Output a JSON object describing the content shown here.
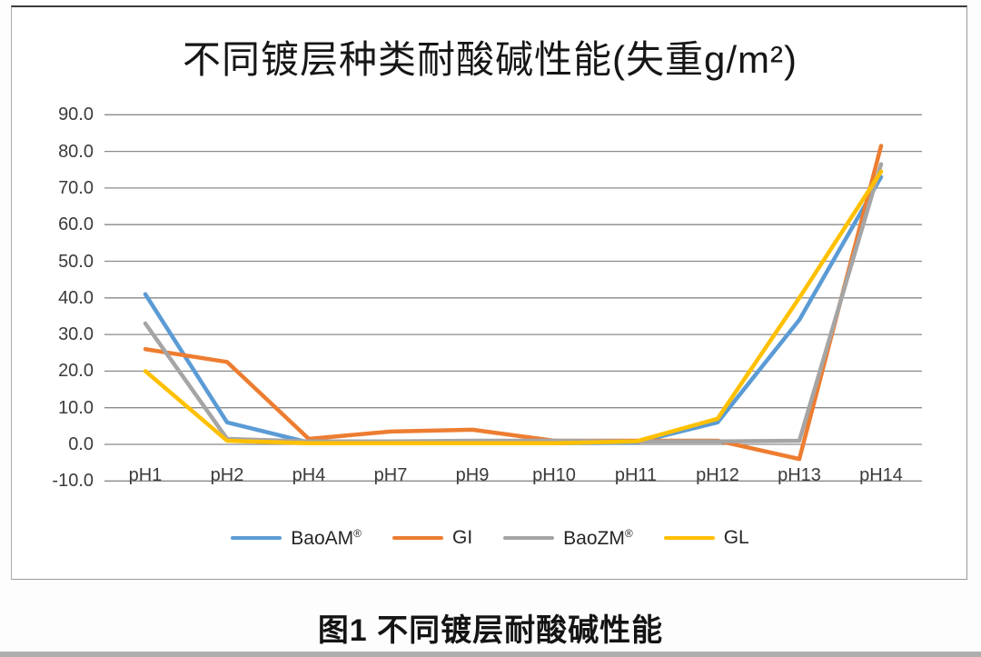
{
  "page": {
    "caption": "图1 不同镀层耐酸碱性能"
  },
  "chart_data": {
    "type": "line",
    "title": "不同镀层种类耐酸碱性能(失重g/m²)",
    "xlabel": "",
    "ylabel": "",
    "categories": [
      "pH1",
      "pH2",
      "pH4",
      "pH7",
      "pH9",
      "pH10",
      "pH11",
      "pH12",
      "pH13",
      "pH14"
    ],
    "series": [
      {
        "name": "BaoAM®",
        "color": "#5B9BD5",
        "values": [
          41,
          6,
          0.5,
          0.3,
          0.3,
          0.3,
          0.5,
          6,
          34,
          73
        ]
      },
      {
        "name": "GI",
        "color": "#ED7D31",
        "values": [
          26,
          22.5,
          1.5,
          3.5,
          4,
          1,
          1,
          1,
          -4,
          81.5
        ]
      },
      {
        "name": "BaoZM®",
        "color": "#A5A5A5",
        "values": [
          33,
          1.5,
          0.8,
          0.8,
          1,
          1,
          0.8,
          0.8,
          1,
          76.5
        ]
      },
      {
        "name": "GL",
        "color": "#FFC000",
        "values": [
          20,
          1,
          0.3,
          0.3,
          0.3,
          0.3,
          0.8,
          7,
          40,
          74.5
        ]
      }
    ],
    "ylim": [
      -10,
      90
    ],
    "ytick_step": 10,
    "ytick_labels": [
      "90.0",
      "80.0",
      "70.0",
      "60.0",
      "50.0",
      "40.0",
      "30.0",
      "20.0",
      "10.0",
      "0.0",
      "-10.0"
    ],
    "grid": true,
    "legend_position": "bottom"
  },
  "colors": {
    "gridline": "#8A8A8A",
    "axis_text": "#3B3B3B",
    "frame_border": "#9A9A9A",
    "bottom_strip": "#AEAEAE"
  }
}
